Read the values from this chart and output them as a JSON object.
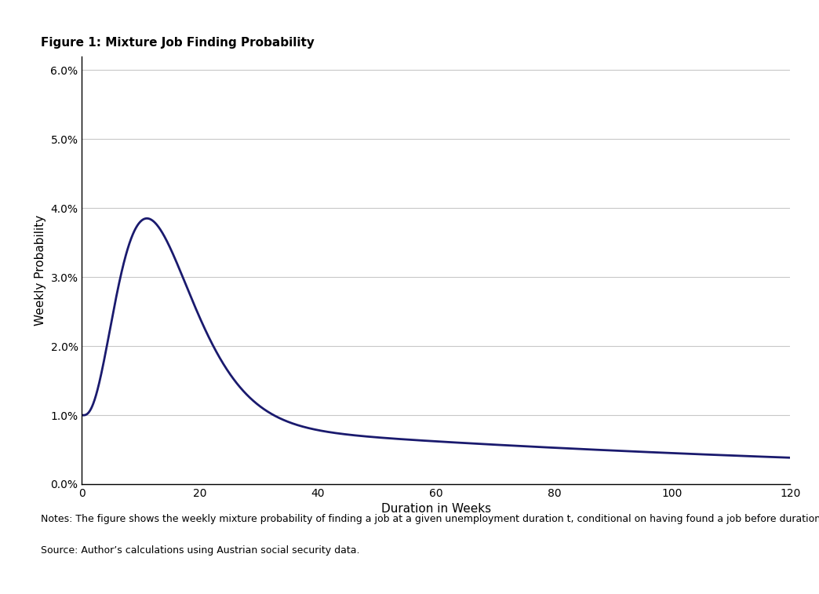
{
  "title": "Figure 1: Mixture Job Finding Probability",
  "xlabel": "Duration in Weeks",
  "ylabel": "Weekly Probability",
  "xlim": [
    0,
    120
  ],
  "ylim": [
    0.0,
    0.062
  ],
  "yticks": [
    0.0,
    0.01,
    0.02,
    0.03,
    0.04,
    0.05,
    0.06
  ],
  "xticks": [
    0,
    20,
    40,
    60,
    80,
    100,
    120
  ],
  "line_color": "#1a1a6e",
  "line_width": 2.0,
  "notes_line1": "Notes: The figure shows the weekly mixture probability of finding a job at a given unemployment duration t, conditional on having found a job before duration t.",
  "notes_line2": "Source: Author’s calculations using Austrian social security data.",
  "background_color": "#ffffff",
  "plot_background": "#ffffff",
  "grid_color": "#c8c8c8",
  "title_fontsize": 11,
  "axis_fontsize": 11,
  "tick_fontsize": 10,
  "notes_fontsize": 9
}
